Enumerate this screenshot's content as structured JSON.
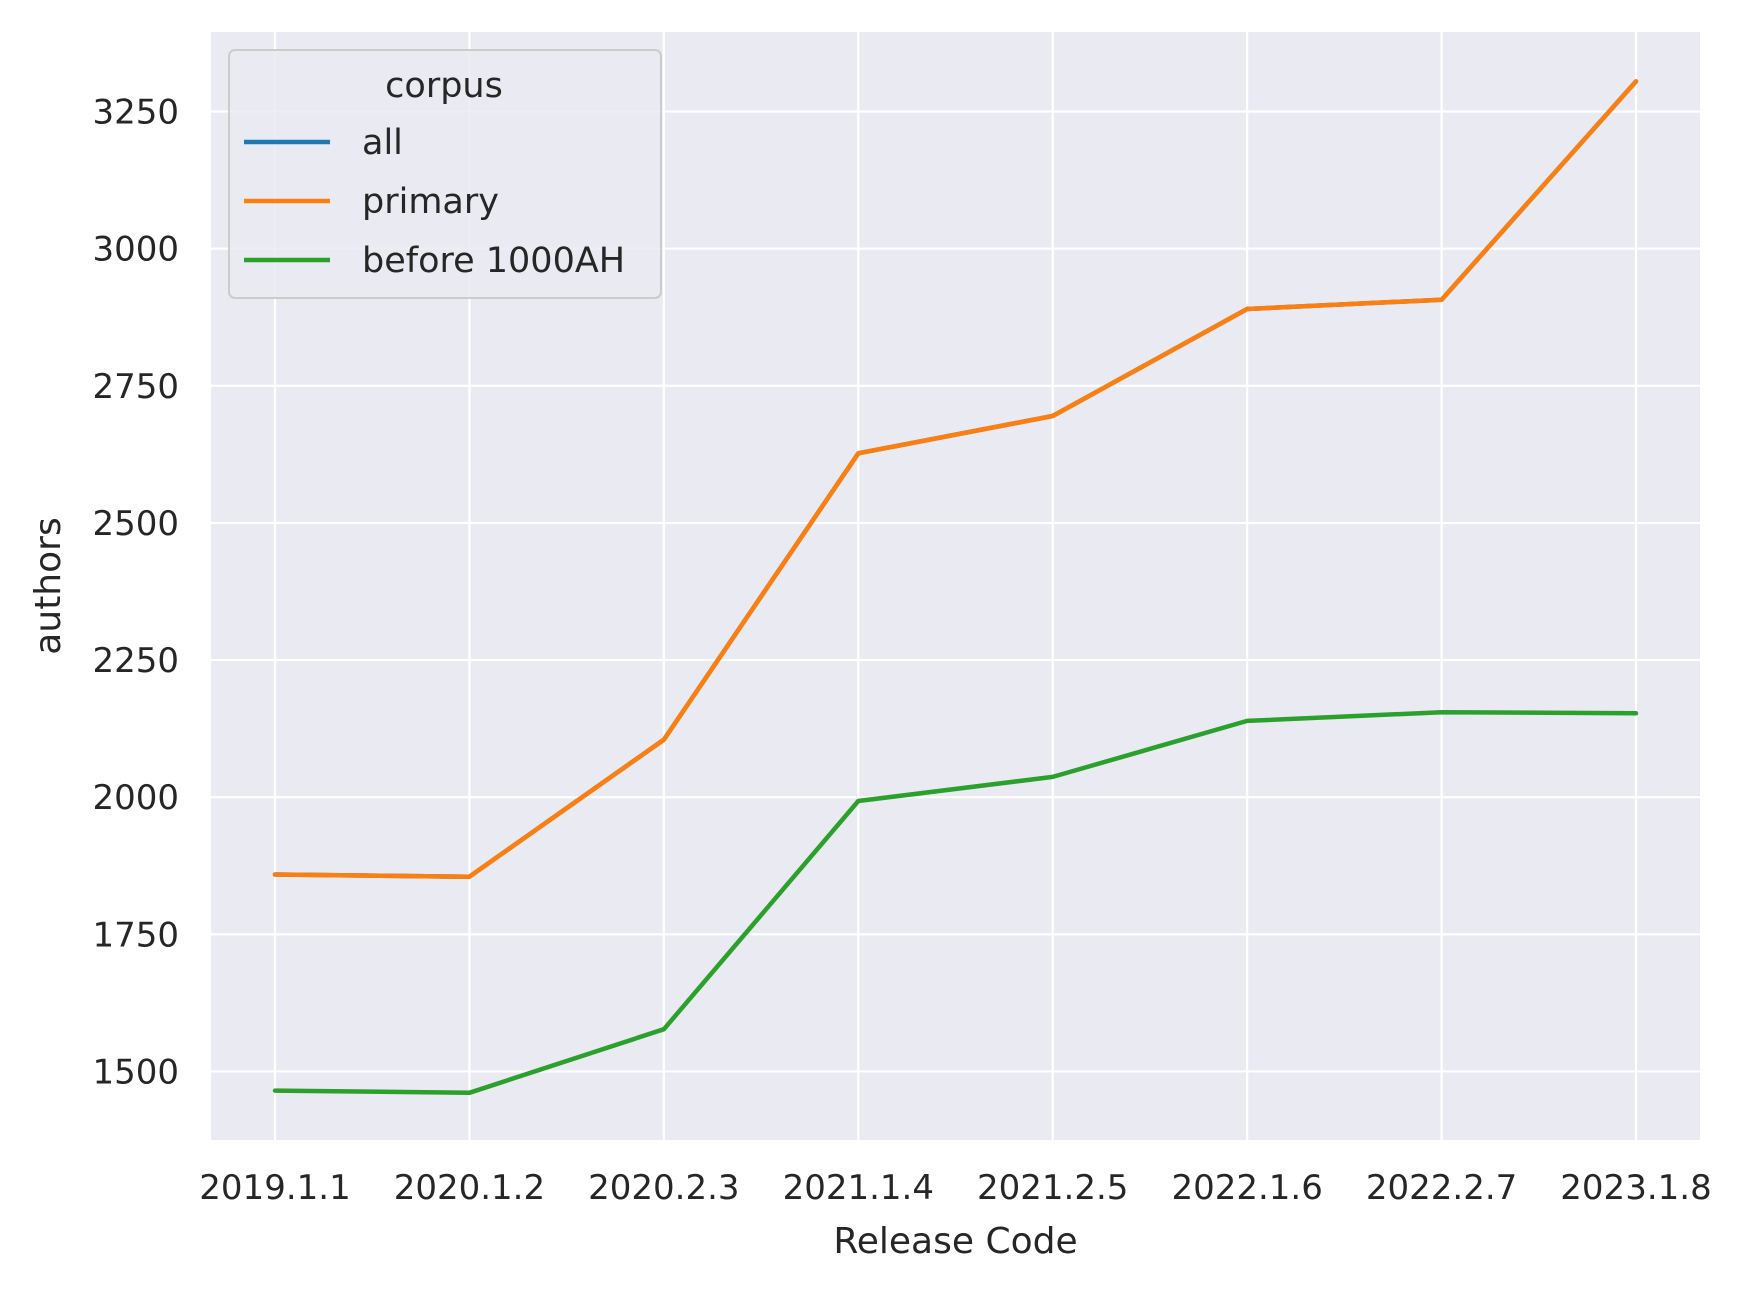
{
  "chart_data": {
    "type": "line",
    "xlabel": "Release Code",
    "ylabel": "authors",
    "categories": [
      "2019.1.1",
      "2020.1.2",
      "2020.2.3",
      "2021.1.4",
      "2021.2.5",
      "2022.1.6",
      "2022.2.7",
      "2023.1.8"
    ],
    "ylim": [
      1375,
      3395
    ],
    "yticks": [
      1500,
      1750,
      2000,
      2250,
      2500,
      2750,
      3000,
      3250
    ],
    "grid": true,
    "legend": {
      "title": "corpus",
      "placement": "top-left"
    },
    "series": [
      {
        "name": "all",
        "color": "#1f77b4",
        "values": [
          1859,
          1855,
          2105,
          2627,
          2695,
          2890,
          2907,
          3305
        ]
      },
      {
        "name": "primary",
        "color": "#ff7f0e",
        "values": [
          1859,
          1855,
          2105,
          2627,
          2695,
          2890,
          2907,
          3305
        ]
      },
      {
        "name": "before 1000AH",
        "color": "#2ca02c",
        "values": [
          1465,
          1461,
          1577,
          1993,
          2037,
          2139,
          2155,
          2153
        ]
      }
    ],
    "colors": {
      "plot_background": "#eaeaf2",
      "gridline": "#ffffff",
      "text": "#262626"
    }
  }
}
